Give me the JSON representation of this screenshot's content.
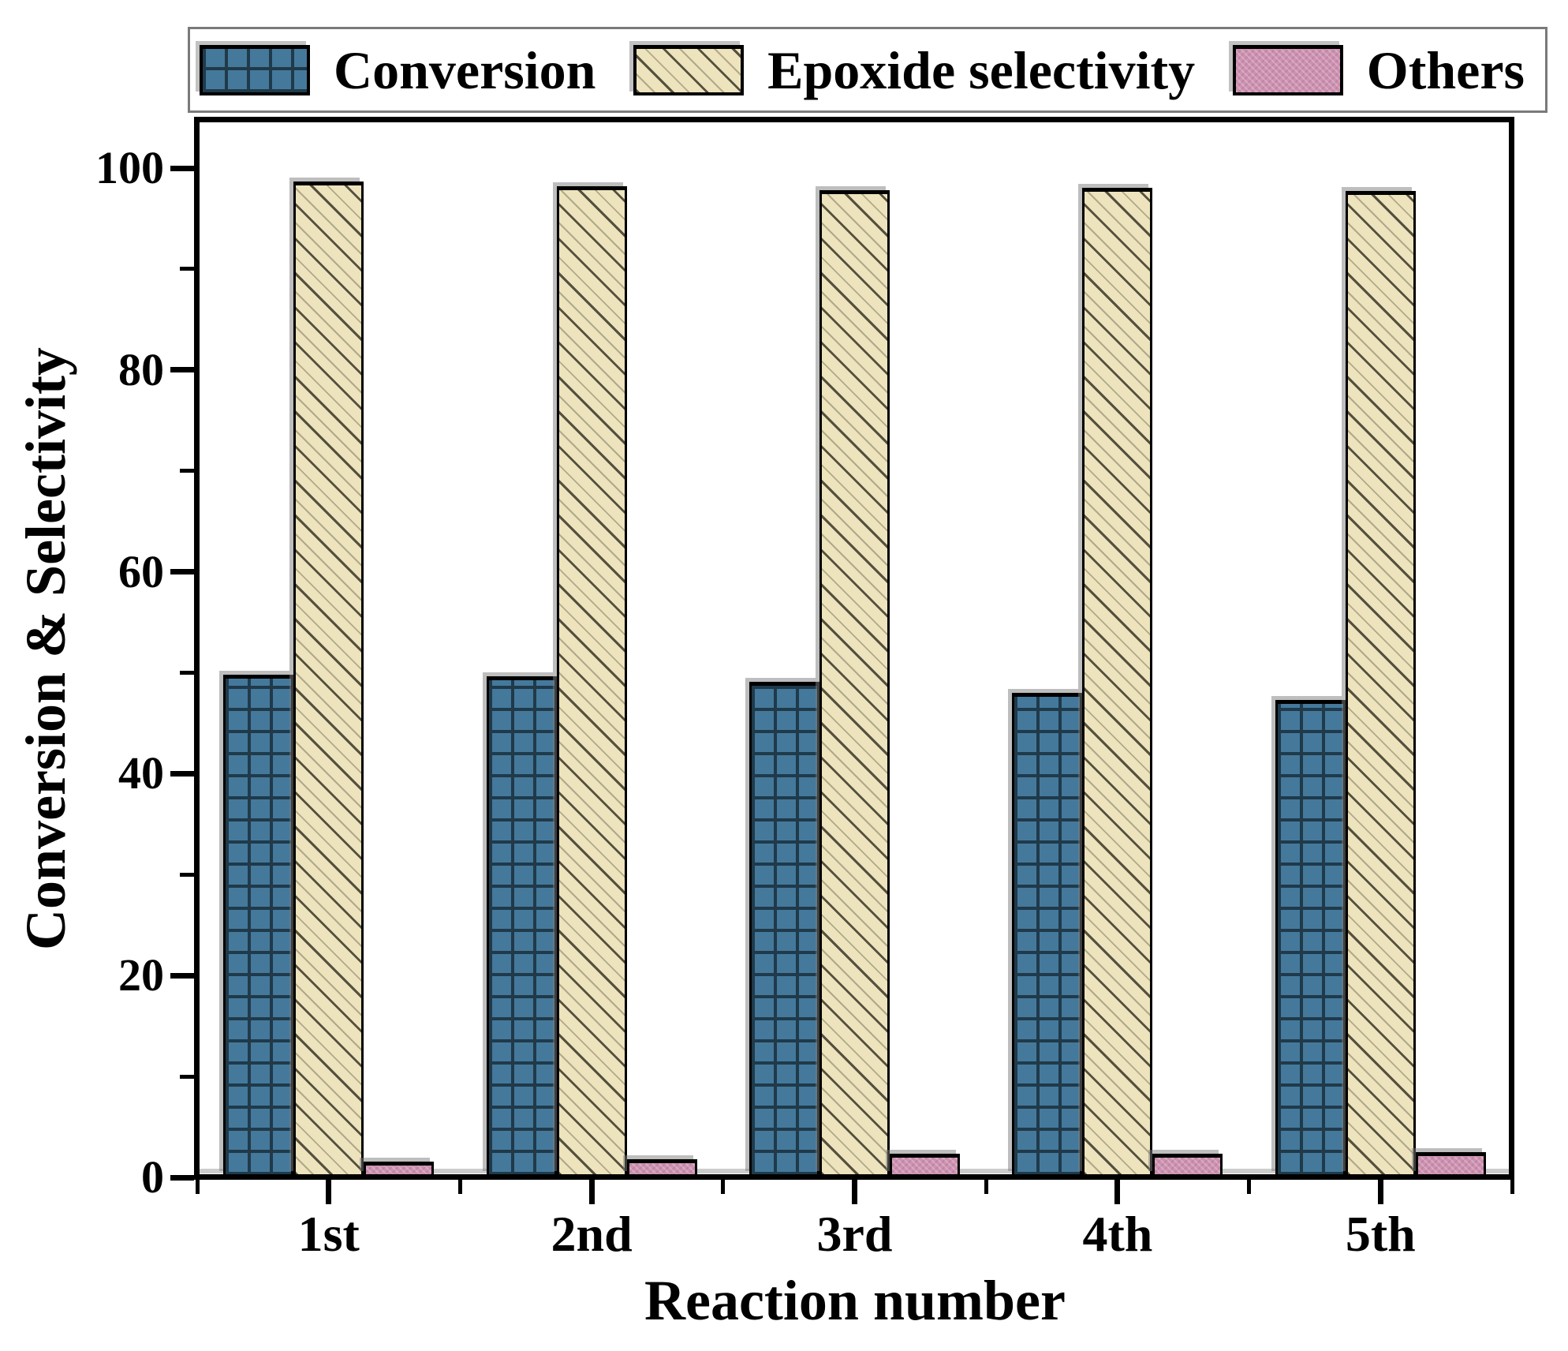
{
  "chart_data": {
    "type": "bar",
    "title": "",
    "xlabel": "Reaction number",
    "ylabel": "Conversion & Selectivity",
    "categories": [
      "1st",
      "2nd",
      "3rd",
      "4th",
      "5th"
    ],
    "series": [
      {
        "name": "Conversion",
        "color": "#45799B",
        "hatch_color": "#1F3A4A",
        "pattern": "crosshatch-grid",
        "values": [
          49.6,
          49.4,
          48.9,
          47.8,
          47.1
        ]
      },
      {
        "name": "Epoxide selectivity",
        "color": "#EDE3BC",
        "hatch_color": "#55503F",
        "pattern": "diagonal-down",
        "values": [
          98.4,
          98.0,
          97.6,
          97.8,
          97.5
        ]
      },
      {
        "name": "Others",
        "color": "#CE92B1",
        "hatch_color": "#B97A9D",
        "pattern": "fine-check",
        "values": [
          1.3,
          1.6,
          2.1,
          2.1,
          2.3
        ]
      }
    ],
    "ylim": [
      0,
      100
    ],
    "y_major_ticks": [
      0,
      20,
      40,
      60,
      80,
      100
    ],
    "y_minor_step": 10,
    "grid": false,
    "legend_position": "top",
    "axis_color": "#000000",
    "background": "#FFFFFF"
  }
}
